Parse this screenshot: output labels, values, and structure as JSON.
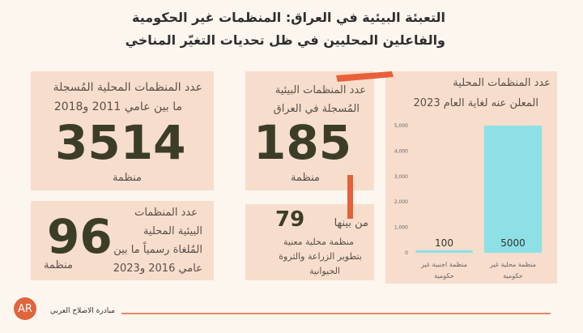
{
  "header": {
    "title": [
      "التعبئة البيئية في العراق: المنظمات غير الحكومية",
      "والفاعلين المحليين  في ظل تحديات التغيّر المناخي"
    ]
  },
  "cards": [
    {
      "text": [
        "عدد المنظمات المحلية المُسجلة",
        "ما بين عامي 2011 و2018"
      ],
      "number": 3514,
      "unit": "منظمة"
    },
    {
      "text": [
        "عدد المنظمات البيئية",
        "المُسجلة في العراق"
      ],
      "number": 185,
      "unit": "منظمة"
    },
    {
      "text": [
        "عدد المنظمات",
        "البيئية المحلية",
        "المُلغاة رسمياً ما بين",
        "عامي 2016 و2023"
      ],
      "number": 96,
      "unit": "منظمة"
    },
    {
      "prefix": "من بينها",
      "number": 79,
      "text": [
        "منظمة محلية معنية",
        "بتطوير الزراعة والثروة",
        "الحيوانية"
      ]
    }
  ],
  "chart_data": {
    "type": "bar",
    "title": [
      "عدد المنظمات المحلية",
      "المعلن عنه لغاية العام 2023"
    ],
    "categories": [
      "منظمة اجنبية غير حكومية",
      "منظمة محلية غير حكومية"
    ],
    "values": [
      100,
      5000
    ],
    "color": "#8ee0e6",
    "ylim": [
      0,
      5000
    ],
    "yticks": [
      0,
      {
        "value": 1000,
        "label": "1,000"
      },
      {
        "value": 2000,
        "label": "2,000"
      },
      {
        "value": 3000,
        "label": "3,000"
      },
      {
        "value": 4000,
        "label": "4,000"
      },
      {
        "value": 5000,
        "label": "5,000"
      }
    ],
    "grid": false
  },
  "footer": {
    "logo": "AR",
    "organization": "مبادرة الاصلاح العربي"
  }
}
